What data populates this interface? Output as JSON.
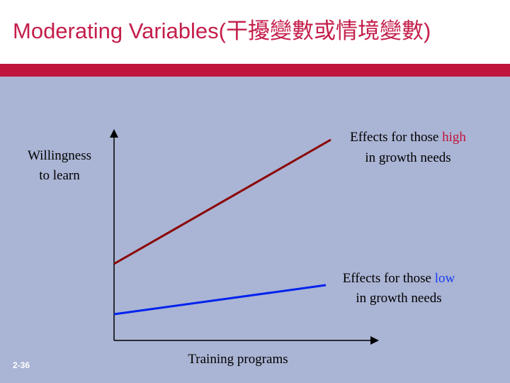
{
  "title": "Moderating Variables(干擾變數或情境變數)",
  "y_axis_label": [
    "Willingness",
    "to learn"
  ],
  "x_axis_label": "Training programs",
  "high_label": {
    "prefix": "Effects for those",
    "emphasis": "high",
    "line2": "in growth needs"
  },
  "low_label": {
    "prefix": "Effects for those",
    "emphasis": "low",
    "line2": "in growth needs"
  },
  "slide_number": "2-36"
}
